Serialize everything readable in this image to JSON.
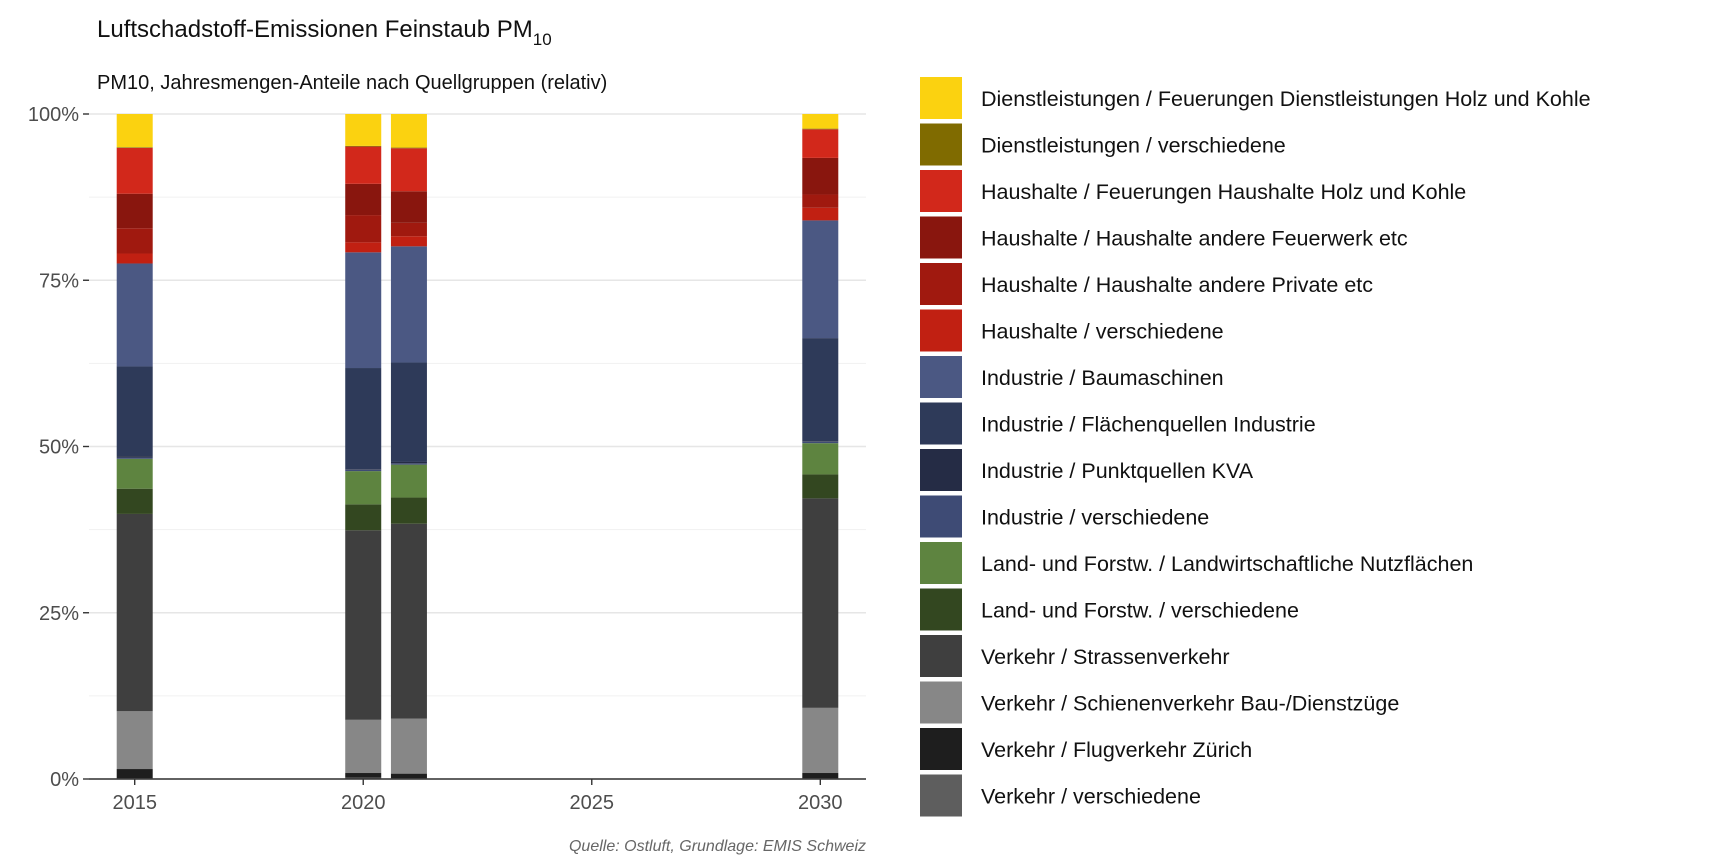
{
  "title": "Luftschadstoff-Emissionen Feinstaub PM",
  "title_subscript": "10",
  "subtitle": "PM10, Jahresmengen-Anteile nach Quellgruppen (relativ)",
  "caption": "Quelle: Ostluft, Grundlage: EMIS Schweiz",
  "chart_data": {
    "type": "bar",
    "stacked": true,
    "normalized": true,
    "title": "Luftschadstoff-Emissionen Feinstaub PM10",
    "subtitle": "PM10, Jahresmengen-Anteile nach Quellgruppen (relativ)",
    "x_ticks": [
      2015,
      2020,
      2025,
      2030
    ],
    "xlim": [
      2014,
      2031
    ],
    "y_ticks": [
      "0%",
      "25%",
      "50%",
      "75%",
      "100%"
    ],
    "ylim": [
      0,
      1
    ],
    "grid": true,
    "legend_position": "right",
    "x": [
      2015,
      2020,
      2021,
      2030
    ],
    "series": [
      {
        "name": "Dienstleistungen / Feuerungen Dienstleistungen Holz und Kohle",
        "color": "#FBD210",
        "values": [
          0.05,
          0.048,
          0.05,
          0.022
        ]
      },
      {
        "name": "Dienstleistungen / verschiedene",
        "color": "#806B00",
        "values": [
          0.001,
          0.001,
          0.001,
          0.001
        ]
      },
      {
        "name": "Haushalte / Feuerungen Haushalte Holz und Kohle",
        "color": "#D2281B",
        "values": [
          0.069,
          0.056,
          0.064,
          0.043
        ]
      },
      {
        "name": "Haushalte / Haushalte andere Feuerwerk etc",
        "color": "#89160E",
        "values": [
          0.052,
          0.047,
          0.047,
          0.055
        ]
      },
      {
        "name": "Haushalte / Haushalte andere Private etc",
        "color": "#A0190F",
        "values": [
          0.038,
          0.041,
          0.02,
          0.02
        ]
      },
      {
        "name": "Haushalte / verschiedene",
        "color": "#C12012",
        "values": [
          0.015,
          0.015,
          0.015,
          0.019
        ]
      },
      {
        "name": "Industrie / Baumaschinen",
        "color": "#4B5883",
        "values": [
          0.155,
          0.174,
          0.173,
          0.177
        ]
      },
      {
        "name": "Industrie / Flächenquellen Industrie",
        "color": "#2E3A59",
        "values": [
          0.135,
          0.152,
          0.148,
          0.155
        ]
      },
      {
        "name": "Industrie / Punktquellen KVA",
        "color": "#252C45",
        "values": [
          0.002,
          0.001,
          0.002,
          0.001
        ]
      },
      {
        "name": "Industrie / verschiedene",
        "color": "#3E4B75",
        "values": [
          0.002,
          0.002,
          0.002,
          0.002
        ]
      },
      {
        "name": "Land- und Forstw. / Landwirtschaftliche Nutzflächen",
        "color": "#5E8440",
        "values": [
          0.045,
          0.05,
          0.049,
          0.047
        ]
      },
      {
        "name": "Land- und Forstw. / verschiedene",
        "color": "#334720",
        "values": [
          0.038,
          0.039,
          0.039,
          0.036
        ]
      },
      {
        "name": "Verkehr / Strassenverkehr",
        "color": "#3F3F3F",
        "values": [
          0.297,
          0.285,
          0.29,
          0.315
        ]
      },
      {
        "name": "Verkehr / Schienenverkehr Bau-/Dienstzüge",
        "color": "#878787",
        "values": [
          0.087,
          0.08,
          0.082,
          0.098
        ]
      },
      {
        "name": "Verkehr / Flugverkehr Zürich",
        "color": "#1E1E1E",
        "values": [
          0.014,
          0.007,
          0.007,
          0.008
        ]
      },
      {
        "name": "Verkehr / verschiedene",
        "color": "#5E5E5E",
        "values": [
          0.001,
          0.002,
          0.001,
          0.001
        ]
      }
    ]
  }
}
